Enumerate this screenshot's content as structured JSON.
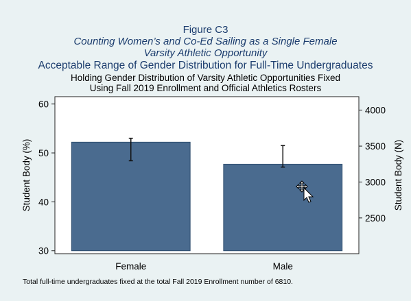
{
  "titles": {
    "line1": "Figure C3",
    "line2": "Counting Women’s and Co-Ed Sailing as a Single Female",
    "line3": "Varsity Athletic Opportunity",
    "line4": "Acceptable Range of Gender Distribution for Full-Time Undergraduates",
    "line5": "Holding Gender Distribution of Varsity Athletic Opportunities Fixed",
    "line6": "Using Fall 2019 Enrollment and Official Athletics Rosters"
  },
  "note": "Total full-time undergraduates fixed at the total Fall 2019 Enrollment number of 6810.",
  "colors": {
    "bar": "#4a6b8f",
    "bar_edge": "#2f4d6e",
    "background": "#eaf2f3",
    "plot_bg": "#ffffff"
  },
  "chart_data": {
    "type": "bar",
    "categories": [
      "Female",
      "Male"
    ],
    "values": [
      52.2,
      47.7
    ],
    "error_low": [
      48.4,
      47.1
    ],
    "error_high": [
      53.0,
      51.5
    ],
    "ylabel": "Student Body (%)",
    "ylim": [
      29.4,
      61.5
    ],
    "yticks": [
      "30",
      "40",
      "50",
      "60"
    ],
    "y2label": "Student Body (N)",
    "y2ticks": [
      "2500",
      "3000",
      "3500",
      "4000"
    ],
    "grid": false
  }
}
